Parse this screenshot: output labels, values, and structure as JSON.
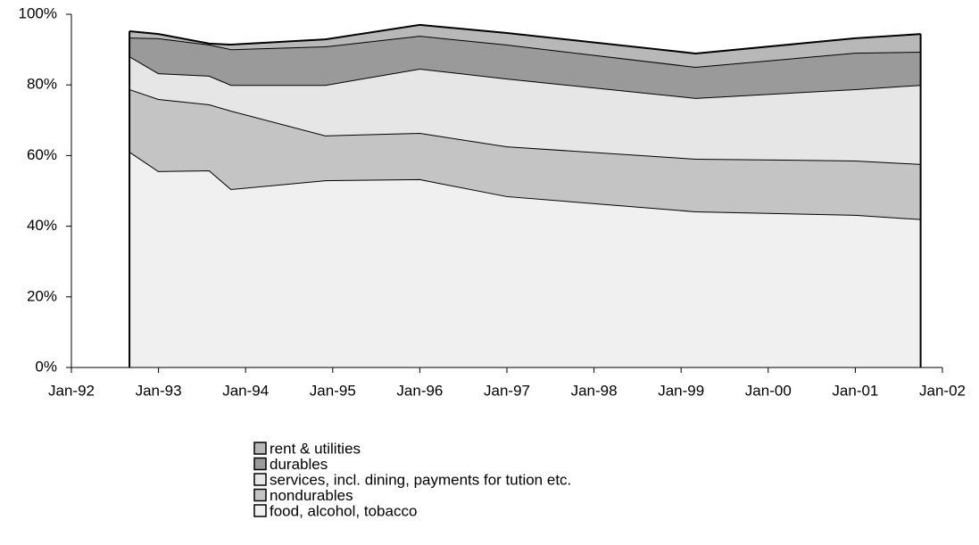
{
  "chart_data": {
    "type": "stacked-area",
    "x": [
      "1992-09",
      "1993-01",
      "1993-08",
      "1993-11",
      "1994-12",
      "1996-01",
      "1997-01",
      "1999-03",
      "2001-01",
      "2001-10"
    ],
    "series": [
      {
        "name": "food, alcohol, tobacco",
        "color": "#f0f0f0",
        "values": [
          61.1,
          55.6,
          55.8,
          50.5,
          53.0,
          53.3,
          48.5,
          44.2,
          43.2,
          42.0
        ]
      },
      {
        "name": "nondurables",
        "color": "#c4c4c4",
        "values": [
          17.7,
          20.4,
          18.7,
          22.2,
          12.7,
          13.1,
          14.1,
          14.9,
          15.4,
          15.6
        ]
      },
      {
        "name": "services, incl. dining, payments for tution etc.",
        "color": "#e6e6e6",
        "values": [
          9.3,
          7.3,
          8.1,
          7.3,
          14.3,
          18.2,
          19.2,
          17.2,
          20.2,
          22.4
        ]
      },
      {
        "name": "durables",
        "color": "#9a9a9a",
        "values": [
          5.3,
          9.9,
          8.8,
          10.1,
          10.9,
          9.3,
          9.6,
          8.8,
          10.3,
          9.4
        ]
      },
      {
        "name": "rent & utilities",
        "color": "#b8b8b8",
        "values": [
          1.8,
          1.2,
          0.3,
          1.3,
          2.0,
          3.1,
          3.3,
          3.8,
          4.1,
          5.0
        ]
      }
    ],
    "xlim": [
      "1992-01",
      "2002-01"
    ],
    "xticks": [
      {
        "value": "1992-01",
        "label": "Jan-92"
      },
      {
        "value": "1993-01",
        "label": "Jan-93"
      },
      {
        "value": "1994-01",
        "label": "Jan-94"
      },
      {
        "value": "1995-01",
        "label": "Jan-95"
      },
      {
        "value": "1996-01",
        "label": "Jan-96"
      },
      {
        "value": "1997-01",
        "label": "Jan-97"
      },
      {
        "value": "1998-01",
        "label": "Jan-98"
      },
      {
        "value": "1999-01",
        "label": "Jan-99"
      },
      {
        "value": "2000-01",
        "label": "Jan-00"
      },
      {
        "value": "2001-01",
        "label": "Jan-01"
      },
      {
        "value": "2002-01",
        "label": "Jan-02"
      }
    ],
    "ylim": [
      0,
      100
    ],
    "yticks": [
      {
        "value": 0,
        "label": "0%"
      },
      {
        "value": 20,
        "label": "20%"
      },
      {
        "value": 40,
        "label": "40%"
      },
      {
        "value": 60,
        "label": "60%"
      },
      {
        "value": 80,
        "label": "80%"
      },
      {
        "value": 100,
        "label": "100%"
      }
    ],
    "legend": "bottom"
  }
}
